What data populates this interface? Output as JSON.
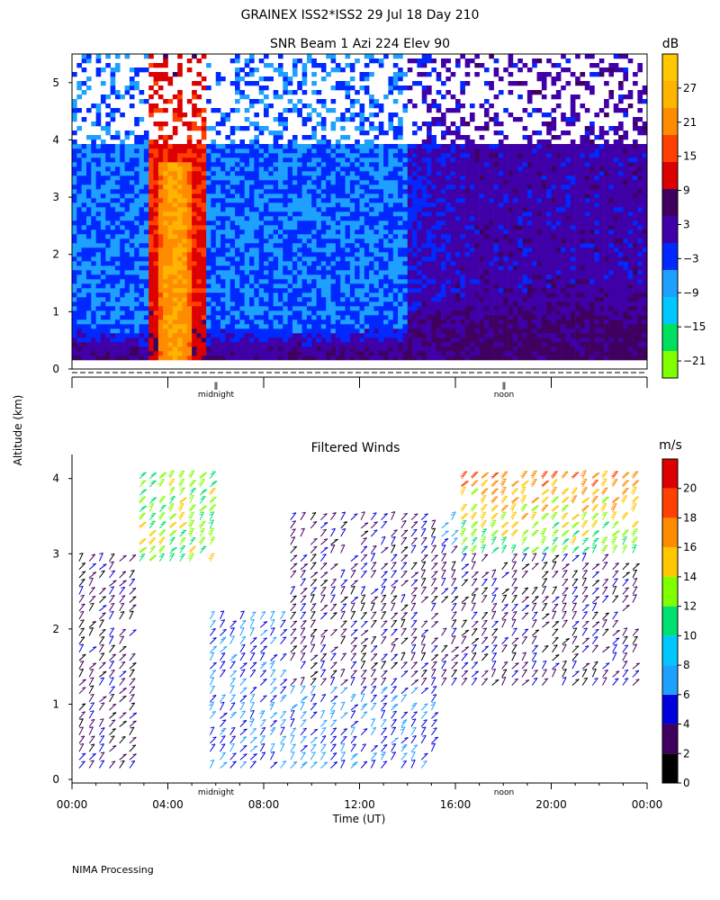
{
  "header": {
    "title": "GRAINEX ISS2*ISS2  29 Jul 18 Day 210",
    "subtitle": "SNR Beam 1 Azi 224 Elev 90"
  },
  "footer": {
    "text": "NIMA Processing"
  },
  "shared": {
    "ylabel": "Altitude (km)",
    "xlabel": "Time (UT)",
    "x_tick_labels": [
      "00:00",
      "04:00",
      "08:00",
      "12:00",
      "16:00",
      "20:00",
      "00:00"
    ],
    "marker_midnight": "midnight",
    "marker_noon": "noon"
  },
  "chart_data": [
    {
      "type": "heatmap",
      "title": "SNR Beam 1 Azi 224 Elev 90",
      "xlabel": "",
      "ylabel": "Altitude (km)",
      "xlim_hours": [
        0,
        24
      ],
      "ylim": [
        0,
        5.5
      ],
      "y_ticks": [
        0,
        1,
        2,
        3,
        4,
        5
      ],
      "x_ticks_hours": [
        0,
        4,
        8,
        12,
        16,
        20,
        24
      ],
      "colorbar": {
        "unit": "dB",
        "tick_labels": [
          "27",
          "21",
          "15",
          "9",
          "3",
          "−3",
          "−9",
          "−15",
          "−21"
        ],
        "tick_values": [
          27,
          21,
          15,
          9,
          3,
          -3,
          -9,
          -15,
          -21
        ],
        "range": [
          -24,
          33
        ],
        "colors": [
          "#7fff00",
          "#00e060",
          "#00c8ff",
          "#1ea0ff",
          "#0028ff",
          "#4000a8",
          "#400060",
          "#dc0000",
          "#ff4000",
          "#ff8c00",
          "#ffb400",
          "#ffc800"
        ]
      },
      "features": [
        {
          "hours": [
            0,
            24
          ],
          "alt_km": [
            0,
            0.6
          ],
          "snr_db": 3
        },
        {
          "hours": [
            3.2,
            5.6
          ],
          "alt_km": [
            0,
            5.5
          ],
          "snr_db": 12
        },
        {
          "hours": [
            3.5,
            5.2
          ],
          "alt_km": [
            0,
            3.5
          ],
          "snr_db": 21
        },
        {
          "hours": [
            0,
            3
          ],
          "alt_km": [
            0.5,
            2.0
          ],
          "snr_db": -9
        },
        {
          "hours": [
            5.6,
            10
          ],
          "alt_km": [
            0.4,
            2.0
          ],
          "snr_db": -9
        },
        {
          "hours": [
            14,
            24
          ],
          "alt_km": [
            0,
            1.2
          ],
          "snr_db": 6
        },
        {
          "hours": [
            18.5,
            22.5
          ],
          "alt_km": [
            1.0,
            3.7
          ],
          "snr_db": 0
        },
        {
          "hours": [
            0,
            24
          ],
          "alt_km": [
            2.0,
            3.8
          ],
          "snr_db": -18
        }
      ]
    },
    {
      "type": "scatter",
      "title": "Filtered Winds",
      "xlabel": "Time (UT)",
      "ylabel": "Altitude (km)",
      "xlim_hours": [
        0,
        24
      ],
      "ylim": [
        0,
        4.2
      ],
      "y_ticks": [
        0,
        1,
        2,
        3,
        4
      ],
      "x_ticks_hours": [
        0,
        4,
        8,
        12,
        16,
        20,
        24
      ],
      "colorbar": {
        "unit": "m/s",
        "tick_labels": [
          "20",
          "18",
          "16",
          "14",
          "12",
          "10",
          "8",
          "6",
          "4",
          "2",
          "0"
        ],
        "tick_values": [
          20,
          18,
          16,
          14,
          12,
          10,
          8,
          6,
          4,
          2,
          0
        ],
        "range": [
          0,
          22
        ],
        "colors": [
          "#000000",
          "#400060",
          "#0000dc",
          "#1ea0ff",
          "#00c8ff",
          "#00e070",
          "#7fff00",
          "#ffc800",
          "#ff8c00",
          "#ff4000",
          "#dc0000"
        ]
      },
      "wind_regions": [
        {
          "hours": [
            0,
            2.8
          ],
          "alt_km": [
            0.1,
            3.0
          ],
          "speed_ms": 3
        },
        {
          "hours": [
            2.6,
            6
          ],
          "alt_km": [
            2.8,
            4.1
          ],
          "speed_ms": 13
        },
        {
          "hours": [
            5.5,
            9.5
          ],
          "alt_km": [
            0.1,
            2.2
          ],
          "speed_ms": 6
        },
        {
          "hours": [
            9,
            15
          ],
          "alt_km": [
            0.1,
            1.2
          ],
          "speed_ms": 6
        },
        {
          "hours": [
            9,
            24
          ],
          "alt_km": [
            1.2,
            3.5
          ],
          "speed_ms": 3
        },
        {
          "hours": [
            16,
            24
          ],
          "alt_km": [
            3.0,
            4.1
          ],
          "speed_ms": 11
        }
      ]
    }
  ]
}
